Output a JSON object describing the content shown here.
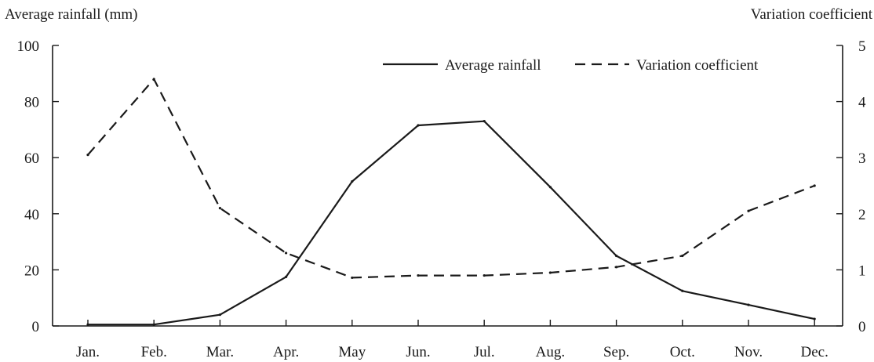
{
  "chart_data": {
    "type": "line",
    "categories": [
      "Jan.",
      "Feb.",
      "Mar.",
      "Apr.",
      "May",
      "Jun.",
      "Jul.",
      "Aug.",
      "Sep.",
      "Oct.",
      "Nov.",
      "Dec."
    ],
    "ylabel_left": "Average rainfall (mm)",
    "ylabel_right": "Variation coefficient",
    "ylim_left": [
      0,
      100
    ],
    "ylim_right": [
      0,
      5
    ],
    "yticks_left": [
      "0",
      "20",
      "40",
      "60",
      "80",
      "100"
    ],
    "yticks_right": [
      "0",
      "1",
      "2",
      "3",
      "4",
      "5"
    ],
    "grid": false,
    "legend_position": "top-right",
    "series": [
      {
        "name": "Average rainfall",
        "axis": "left",
        "style": "solid",
        "color": "#1a1a1a",
        "values": [
          0.5,
          0.5,
          4,
          17.5,
          51.5,
          71.5,
          73,
          49.5,
          25,
          12.5,
          7.5,
          2.5
        ]
      },
      {
        "name": "Variation coefficient",
        "axis": "right",
        "style": "dashed",
        "color": "#1a1a1a",
        "values": [
          3.05,
          4.4,
          2.1,
          1.3,
          0.86,
          0.9,
          0.9,
          0.95,
          1.05,
          1.25,
          2.05,
          2.5
        ]
      }
    ]
  }
}
